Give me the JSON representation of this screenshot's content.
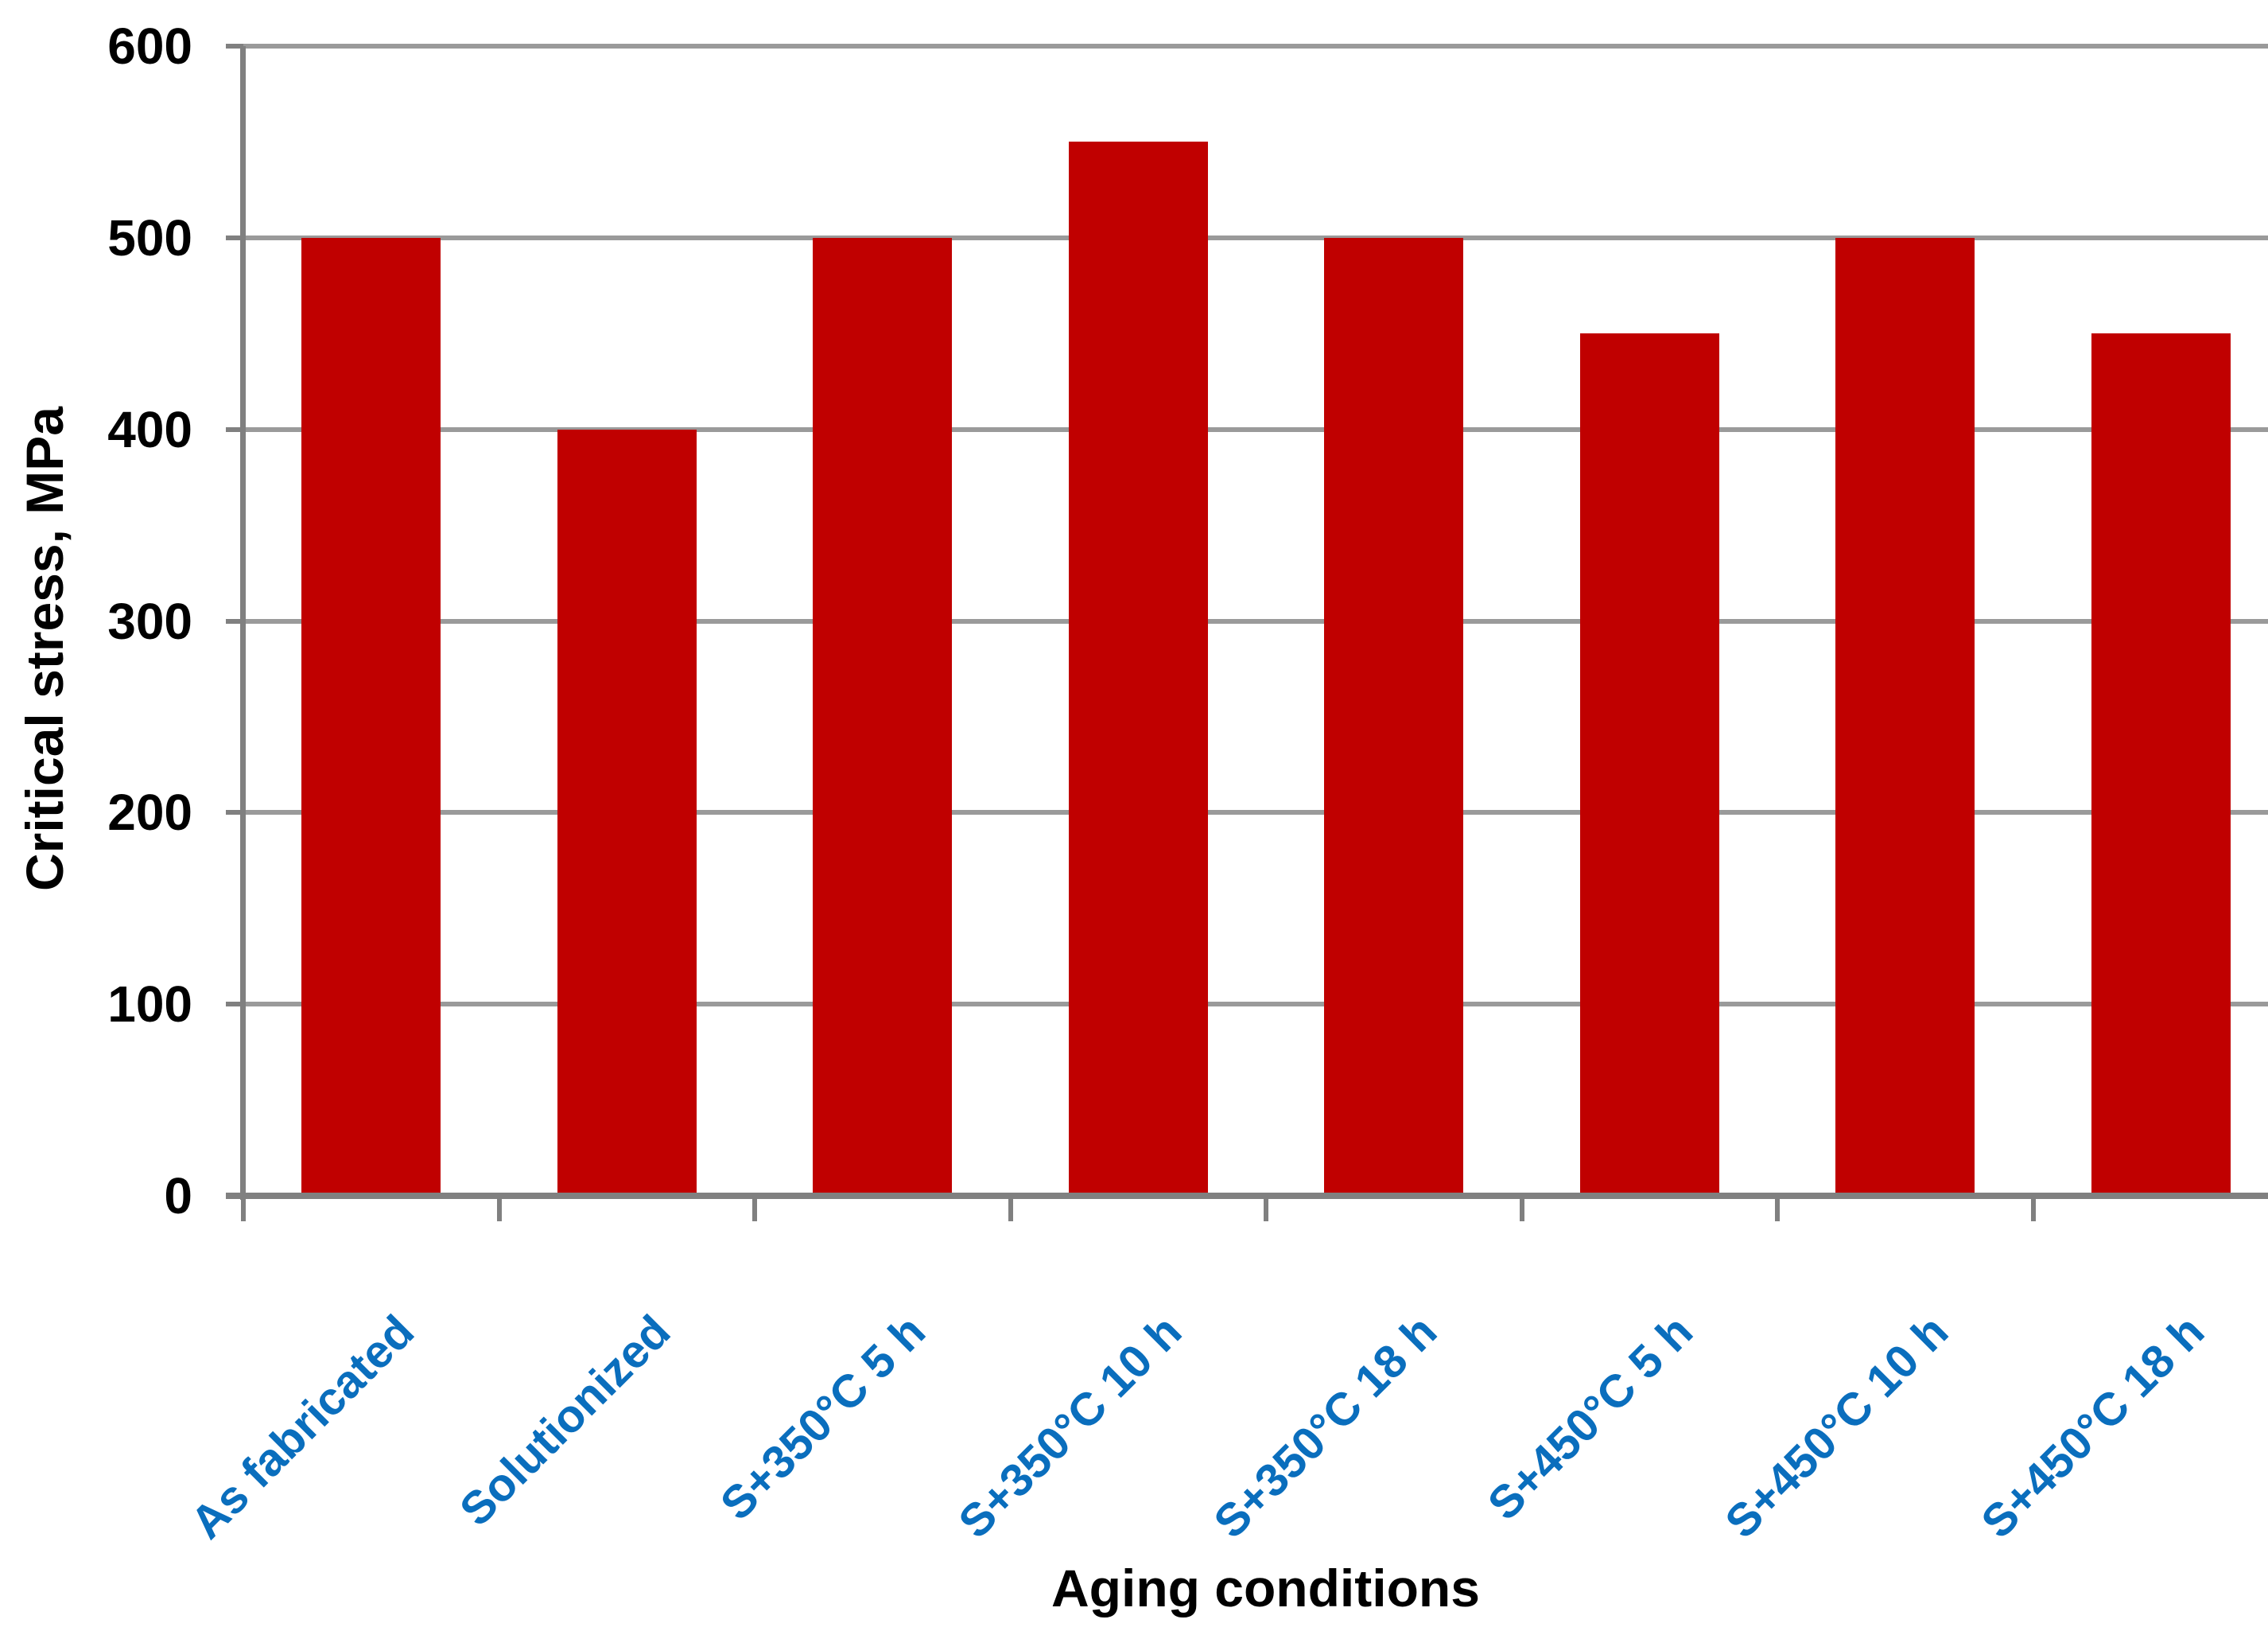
{
  "chart_data": {
    "type": "bar",
    "title": "",
    "categories": [
      "As fabricated",
      "Solutionized",
      "S+350°C 5 h",
      "S+350°C 10 h",
      "S+350°C 18 h",
      "S+450°C 5 h",
      "S+450°C 10 h",
      "S+450°C 18 h"
    ],
    "values": [
      500,
      400,
      500,
      550,
      500,
      450,
      500,
      450
    ],
    "xlabel": "Aging conditions",
    "ylabel": "Critical stress, MPa",
    "ylim": [
      0,
      600
    ],
    "yticks": [
      0,
      100,
      200,
      300,
      400,
      500,
      600
    ],
    "grid": true,
    "legend": "none",
    "colors": {
      "bar": "#C00000",
      "category_label": "#0A6EBD",
      "gridline": "#9A9A9A",
      "axis": "#808080",
      "text": "#000000",
      "background": "#FFFFFF"
    }
  }
}
